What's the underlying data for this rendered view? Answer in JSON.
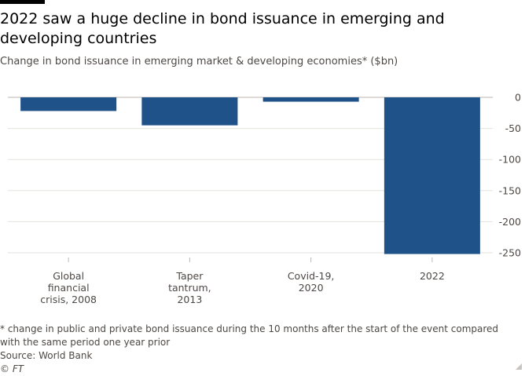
{
  "header": {
    "title": "2022 saw a huge decline in bond issuance in emerging and developing countries",
    "subtitle": "Change in bond issuance in emerging market & developing economies* ($bn)"
  },
  "chart_data": {
    "type": "bar",
    "title": "2022 saw a huge decline in bond issuance in emerging and developing countries",
    "subtitle": "Change in bond issuance in emerging market & developing economies* ($bn)",
    "categories": [
      [
        "Global",
        "financial",
        "crisis, 2008"
      ],
      [
        "Taper",
        "tantrum,",
        "2013"
      ],
      [
        "Covid-19,",
        "2020"
      ],
      [
        "2022"
      ]
    ],
    "values": [
      -22,
      -45,
      -7,
      -252
    ],
    "ylim": [
      -260,
      0
    ],
    "yticks": [
      0,
      -50,
      -100,
      -150,
      -200,
      -250
    ],
    "ytick_labels": [
      "0",
      "-50",
      "-100",
      "-150",
      "-200",
      "-250"
    ],
    "grid": true,
    "y_axis_side": "right",
    "bar_color": "#1f5289"
  },
  "footer": {
    "note": "* change in public and private bond issuance during the 10 months after the start of the event compared with the same period one year prior",
    "source": "Source: World Bank",
    "credit": "© FT"
  }
}
